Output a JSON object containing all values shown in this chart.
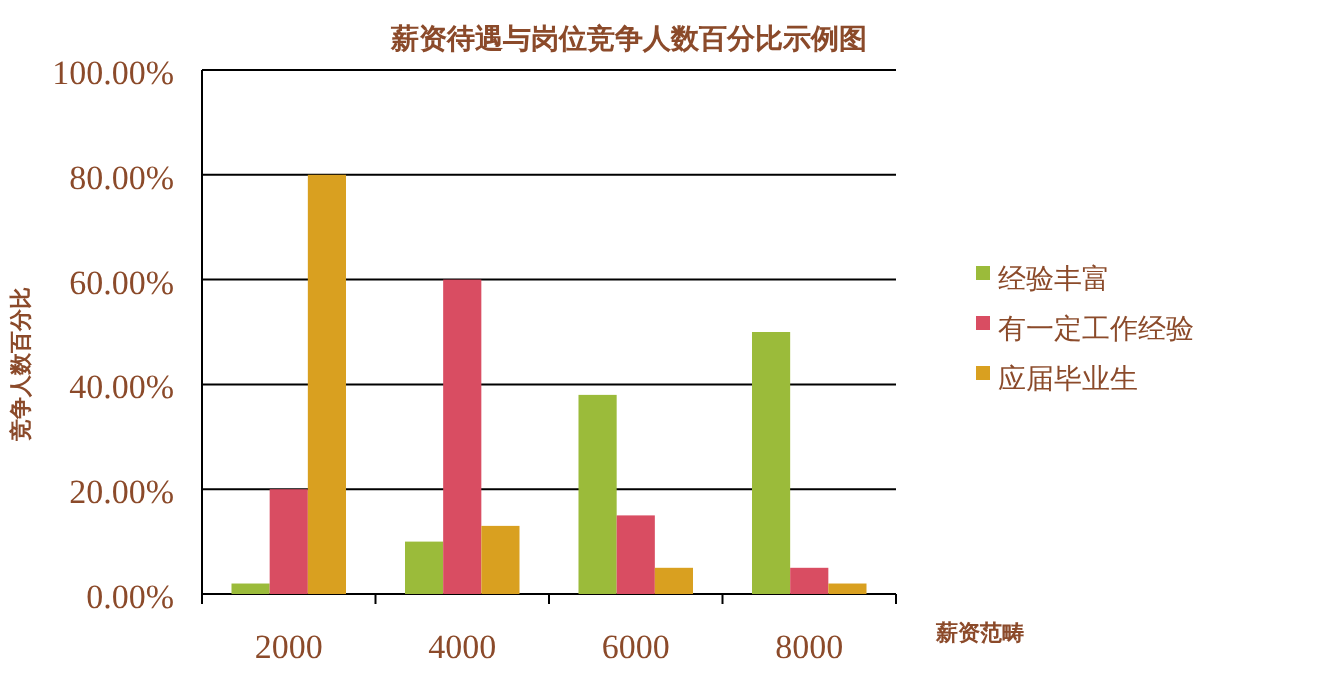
{
  "chart_data": {
    "type": "bar",
    "title": "薪资待遇与岗位竞争人数百分比示例图",
    "xlabel": "薪资范畴",
    "ylabel": "竞争人数百分比",
    "categories": [
      "2000",
      "4000",
      "6000",
      "8000"
    ],
    "series": [
      {
        "name": "经验丰富",
        "color": "#9bbb3a",
        "values": [
          2,
          10,
          38,
          50
        ]
      },
      {
        "name": "有一定工作经验",
        "color": "#d94d62",
        "values": [
          20,
          60,
          15,
          5
        ]
      },
      {
        "name": "应届毕业生",
        "color": "#d9a020",
        "values": [
          80,
          13,
          5,
          2
        ]
      }
    ],
    "ylim": [
      0,
      100
    ],
    "yticks": [
      {
        "value": 0,
        "label": "0.00%"
      },
      {
        "value": 20,
        "label": "20.00%"
      },
      {
        "value": 40,
        "label": "40.00%"
      },
      {
        "value": 60,
        "label": "60.00%"
      },
      {
        "value": 80,
        "label": "80.00%"
      },
      {
        "value": 100,
        "label": "100.00%"
      }
    ],
    "grid": "y",
    "legend": "right"
  }
}
